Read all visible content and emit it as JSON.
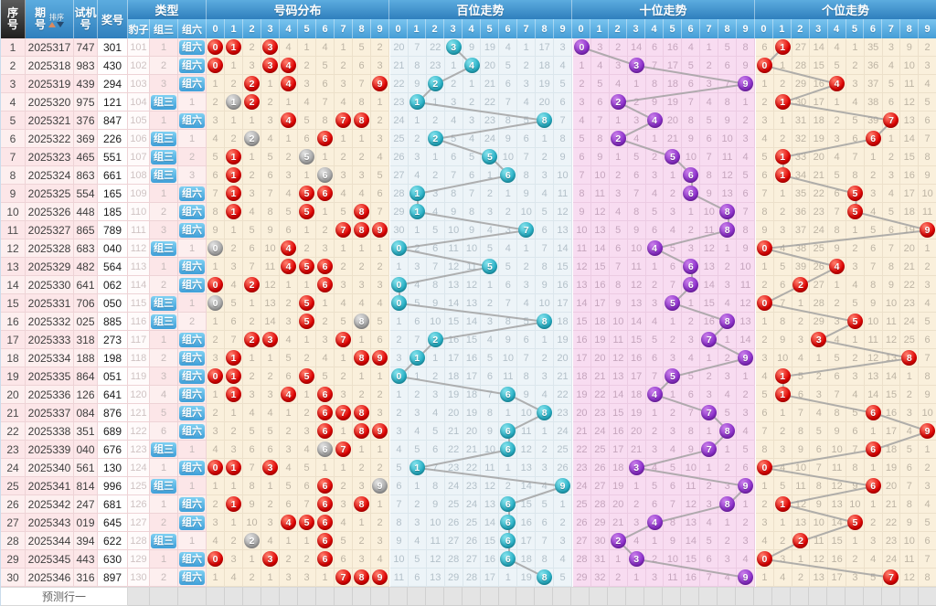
{
  "labels": {
    "seq": "序号",
    "period": "期号",
    "sort": "排序",
    "test": "试机号",
    "prize": "奖号",
    "type": "类型",
    "baozi": "豹子",
    "zusan": "组三",
    "zuliu": "组六",
    "dist": "号码分布",
    "hundreds": "百位走势",
    "tens": "十位走势",
    "units": "个位走势",
    "predict": "预测行一"
  },
  "digits": [
    "0",
    "1",
    "2",
    "3",
    "4",
    "5",
    "6",
    "7",
    "8",
    "9"
  ],
  "rows": [
    {
      "seq": "1",
      "period": "2025317",
      "test": "747",
      "prize": "301",
      "baozi": "101",
      "zusan": "1",
      "zuliu": "组六"
    },
    {
      "seq": "2",
      "period": "2025318",
      "test": "983",
      "prize": "430",
      "baozi": "102",
      "zusan": "2",
      "zuliu": "组六"
    },
    {
      "seq": "3",
      "period": "2025319",
      "test": "439",
      "prize": "294",
      "baozi": "103",
      "zusan": "3",
      "zuliu": "组六"
    },
    {
      "seq": "4",
      "period": "2025320",
      "test": "975",
      "prize": "121",
      "baozi": "104",
      "zusan": "组三",
      "zuliu": "1"
    },
    {
      "seq": "5",
      "period": "2025321",
      "test": "376",
      "prize": "847",
      "baozi": "105",
      "zusan": "1",
      "zuliu": "组六"
    },
    {
      "seq": "6",
      "period": "2025322",
      "test": "369",
      "prize": "226",
      "baozi": "106",
      "zusan": "组三",
      "zuliu": "1"
    },
    {
      "seq": "7",
      "period": "2025323",
      "test": "465",
      "prize": "551",
      "baozi": "107",
      "zusan": "组三",
      "zuliu": "2"
    },
    {
      "seq": "8",
      "period": "2025324",
      "test": "863",
      "prize": "661",
      "baozi": "108",
      "zusan": "组三",
      "zuliu": "3"
    },
    {
      "seq": "9",
      "period": "2025325",
      "test": "554",
      "prize": "165",
      "baozi": "109",
      "zusan": "1",
      "zuliu": "组六"
    },
    {
      "seq": "10",
      "period": "2025326",
      "test": "448",
      "prize": "185",
      "baozi": "110",
      "zusan": "2",
      "zuliu": "组六"
    },
    {
      "seq": "11",
      "period": "2025327",
      "test": "865",
      "prize": "789",
      "baozi": "111",
      "zusan": "3",
      "zuliu": "组六"
    },
    {
      "seq": "12",
      "period": "2025328",
      "test": "683",
      "prize": "040",
      "baozi": "112",
      "zusan": "组三",
      "zuliu": "1"
    },
    {
      "seq": "13",
      "period": "2025329",
      "test": "482",
      "prize": "564",
      "baozi": "113",
      "zusan": "1",
      "zuliu": "组六"
    },
    {
      "seq": "14",
      "period": "2025330",
      "test": "641",
      "prize": "062",
      "baozi": "114",
      "zusan": "2",
      "zuliu": "组六"
    },
    {
      "seq": "15",
      "period": "2025331",
      "test": "706",
      "prize": "050",
      "baozi": "115",
      "zusan": "组三",
      "zuliu": "1"
    },
    {
      "seq": "16",
      "period": "2025332",
      "test": "025",
      "prize": "885",
      "baozi": "116",
      "zusan": "组三",
      "zuliu": "2"
    },
    {
      "seq": "17",
      "period": "2025333",
      "test": "318",
      "prize": "273",
      "baozi": "117",
      "zusan": "1",
      "zuliu": "组六"
    },
    {
      "seq": "18",
      "period": "2025334",
      "test": "188",
      "prize": "198",
      "baozi": "118",
      "zusan": "2",
      "zuliu": "组六"
    },
    {
      "seq": "19",
      "period": "2025335",
      "test": "864",
      "prize": "051",
      "baozi": "119",
      "zusan": "3",
      "zuliu": "组六"
    },
    {
      "seq": "20",
      "period": "2025336",
      "test": "126",
      "prize": "641",
      "baozi": "120",
      "zusan": "4",
      "zuliu": "组六"
    },
    {
      "seq": "21",
      "period": "2025337",
      "test": "084",
      "prize": "876",
      "baozi": "121",
      "zusan": "5",
      "zuliu": "组六"
    },
    {
      "seq": "22",
      "period": "2025338",
      "test": "351",
      "prize": "689",
      "baozi": "122",
      "zusan": "6",
      "zuliu": "组六"
    },
    {
      "seq": "23",
      "period": "2025339",
      "test": "040",
      "prize": "676",
      "baozi": "123",
      "zusan": "组三",
      "zuliu": "1"
    },
    {
      "seq": "24",
      "period": "2025340",
      "test": "561",
      "prize": "130",
      "baozi": "124",
      "zusan": "1",
      "zuliu": "组六"
    },
    {
      "seq": "25",
      "period": "2025341",
      "test": "814",
      "prize": "996",
      "baozi": "125",
      "zusan": "组三",
      "zuliu": "1"
    },
    {
      "seq": "26",
      "period": "2025342",
      "test": "247",
      "prize": "681",
      "baozi": "126",
      "zusan": "1",
      "zuliu": "组六"
    },
    {
      "seq": "27",
      "period": "2025343",
      "test": "019",
      "prize": "645",
      "baozi": "127",
      "zusan": "2",
      "zuliu": "组六"
    },
    {
      "seq": "28",
      "period": "2025344",
      "test": "394",
      "prize": "622",
      "baozi": "128",
      "zusan": "组三",
      "zuliu": "1"
    },
    {
      "seq": "29",
      "period": "2025345",
      "test": "443",
      "prize": "630",
      "baozi": "129",
      "zusan": "1",
      "zuliu": "组六"
    },
    {
      "seq": "30",
      "period": "2025346",
      "test": "316",
      "prize": "897",
      "baozi": "130",
      "zusan": "2",
      "zuliu": "组六"
    }
  ],
  "trend": {
    "sections": [
      {
        "id": "fenbu",
        "mode": "all",
        "ball": "red",
        "initial_miss": [
          0,
          0,
          1,
          0,
          3,
          0,
          3,
          0,
          4,
          1
        ]
      },
      {
        "id": "bai",
        "mode": "hundreds",
        "ball": "teal",
        "initial_miss": [
          19,
          6,
          21,
          0,
          8,
          18,
          3,
          0,
          16,
          2
        ]
      },
      {
        "id": "shi",
        "mode": "tens",
        "ball": "purple",
        "initial_miss": [
          0,
          2,
          1,
          13,
          5,
          15,
          3,
          0,
          4,
          7
        ]
      },
      {
        "id": "ge",
        "mode": "units",
        "ball": "red",
        "initial_miss": [
          5,
          0,
          26,
          13,
          3,
          0,
          34,
          2,
          8,
          1
        ]
      }
    ]
  },
  "colors": {
    "header_blue": "#2f7fbd",
    "header_blue_light": "#5cacdf",
    "bg_cream": "#faf0dc",
    "bg_blue": "#edf4f8",
    "bg_pink": "#f8dcf1",
    "bg_left_pink": "#fce6e8",
    "bg_left_pink_alt": "#fdefef",
    "ball_red": "#e00000",
    "ball_gray": "#a8a8a8",
    "ball_teal": "#27b1c7",
    "ball_purple": "#8c2ecc",
    "badge_blue": "#3f9fd9",
    "line_gray": "#9e9e9e"
  }
}
